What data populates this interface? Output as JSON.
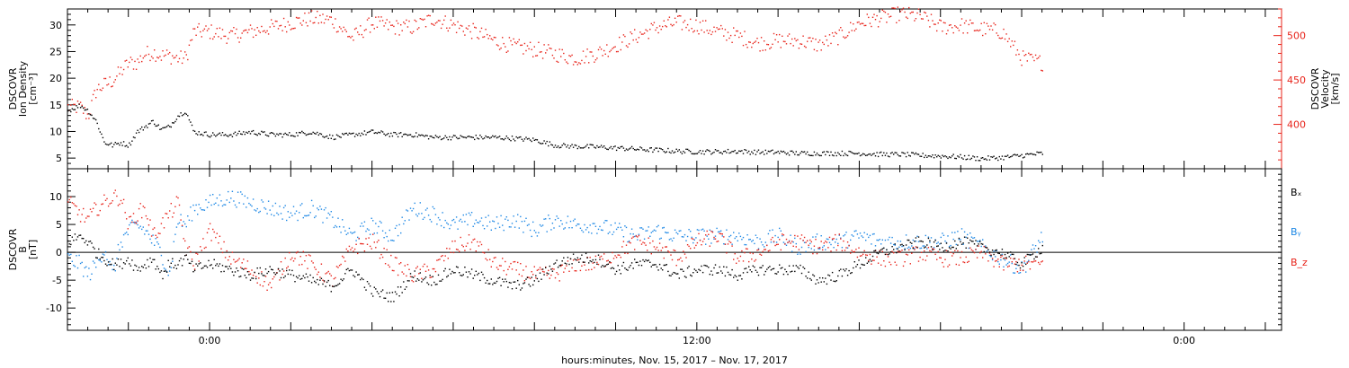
{
  "colors": {
    "black": "#000000",
    "red": "#e8241b",
    "blue": "#1e88e5"
  },
  "chart_data": [
    {
      "type": "scatter",
      "panel": "plasma",
      "x_unit": "hours since 00:00 Nov 16, 2017",
      "xlim": [
        -3.5,
        26.4
      ],
      "x_major_ticks": [
        -2.0,
        0.0,
        2.0,
        4.0,
        6.0,
        8.0,
        10.0,
        12.0,
        14.0,
        16.0,
        18.0,
        20.0,
        22.0,
        24.0,
        26.0
      ],
      "x_tick_labels": [
        {
          "x": 0.0,
          "label": "0:00"
        },
        {
          "x": 12.0,
          "label": "12:00"
        },
        {
          "x": 24.0,
          "label": "0:00"
        }
      ],
      "left_axis": {
        "label_lines": [
          "DSCOVR",
          "Ion Density",
          "[cm⁻³]"
        ],
        "ylim": [
          3,
          33
        ],
        "ticks": [
          5,
          10,
          15,
          20,
          25,
          30
        ],
        "color": "#000000"
      },
      "right_axis": {
        "label_lines": [
          "DSCOVR",
          "Velocity",
          "[km/s]"
        ],
        "ylim": [
          350,
          530
        ],
        "ticks": [
          400,
          450,
          500
        ],
        "color": "#e8241b"
      },
      "series": [
        {
          "axis": "left",
          "color": "#000000",
          "x": [
            -3.5,
            -3.2,
            -3.0,
            -2.8,
            -2.6,
            -2.4,
            -2.2,
            -2.0,
            -1.8,
            -1.6,
            -1.4,
            -1.2,
            -1.0,
            -0.8,
            -0.6,
            -0.4,
            0.0,
            0.5,
            1.0,
            1.5,
            2.0,
            2.5,
            3.0,
            3.5,
            4.0,
            4.5,
            5.0,
            5.5,
            6.0,
            6.5,
            7.0,
            7.5,
            8.0,
            8.5,
            9.0,
            9.5,
            10.0,
            10.5,
            11.0,
            11.5,
            12.0,
            12.5,
            13.0,
            13.5,
            14.0,
            14.5,
            15.0,
            15.5,
            16.0,
            16.5,
            17.0,
            17.5,
            18.0,
            18.5,
            19.0,
            19.5,
            20.0,
            20.5
          ],
          "y": [
            14,
            15,
            14,
            12,
            8,
            7.5,
            8,
            7.5,
            10,
            11,
            12,
            10.5,
            11,
            13,
            14,
            10,
            9.5,
            9.5,
            10,
            9.5,
            9.5,
            10,
            9,
            9.5,
            10,
            9.5,
            9.5,
            9,
            9,
            9,
            9,
            8.8,
            8.5,
            7.5,
            7.3,
            7.2,
            7.0,
            6.8,
            6.6,
            6.4,
            6.3,
            6.3,
            6.4,
            6.2,
            6.2,
            6.0,
            6.0,
            6.0,
            6.0,
            5.8,
            5.8,
            5.6,
            5.5,
            5.3,
            5.0,
            5.2,
            5.6,
            6.0
          ]
        },
        {
          "axis": "right",
          "color": "#e8241b",
          "x": [
            -3.5,
            -3.2,
            -3.0,
            -2.8,
            -2.6,
            -2.4,
            -2.2,
            -2.0,
            -1.8,
            -1.6,
            -1.4,
            -1.2,
            -1.0,
            -0.8,
            -0.6,
            -0.4,
            0.0,
            0.5,
            1.0,
            1.5,
            2.0,
            2.5,
            3.0,
            3.5,
            4.0,
            4.5,
            5.0,
            5.5,
            6.0,
            6.5,
            7.0,
            7.5,
            8.0,
            8.5,
            9.0,
            9.5,
            10.0,
            10.5,
            11.0,
            11.5,
            12.0,
            12.5,
            13.0,
            13.5,
            14.0,
            14.5,
            15.0,
            15.5,
            16.0,
            16.5,
            17.0,
            17.5,
            18.0,
            18.5,
            19.0,
            19.5,
            20.0,
            20.5
          ],
          "y": [
            420,
            420,
            410,
            440,
            445,
            450,
            460,
            470,
            470,
            480,
            482,
            478,
            478,
            475,
            475,
            505,
            505,
            500,
            505,
            510,
            515,
            520,
            518,
            498,
            515,
            510,
            510,
            520,
            512,
            505,
            495,
            488,
            485,
            480,
            475,
            480,
            490,
            500,
            510,
            515,
            512,
            505,
            500,
            492,
            495,
            495,
            490,
            500,
            515,
            520,
            525,
            522,
            510,
            512,
            508,
            505,
            475,
            470
          ]
        }
      ]
    },
    {
      "type": "scatter",
      "panel": "magnetic",
      "x_unit": "hours since 00:00 Nov 16, 2017",
      "xlim": [
        -3.5,
        26.4
      ],
      "left_axis": {
        "label_lines": [
          "DSCOVR",
          "B",
          "[nT]"
        ],
        "ylim": [
          -14,
          15
        ],
        "ticks": [
          -10,
          -5,
          0,
          5,
          10
        ],
        "zero_line": true
      },
      "legend": [
        {
          "name": "Bₓ",
          "color": "#000000"
        },
        {
          "name": "Bᵧ",
          "color": "#1e88e5"
        },
        {
          "name": "B_z",
          "color": "#e8241b"
        }
      ],
      "series": [
        {
          "name": "Bₓ",
          "color": "#000000",
          "x": [
            -3.5,
            -3.2,
            -3.0,
            -2.8,
            -2.6,
            -2.4,
            -2.2,
            -2.0,
            -1.8,
            -1.6,
            -1.4,
            -1.2,
            -1.0,
            -0.8,
            -0.6,
            -0.4,
            0.0,
            0.5,
            1.0,
            1.5,
            2.0,
            2.5,
            3.0,
            3.5,
            4.0,
            4.5,
            5.0,
            5.5,
            6.0,
            6.5,
            7.0,
            7.5,
            8.0,
            8.5,
            9.0,
            9.5,
            10.0,
            10.5,
            11.0,
            11.5,
            12.0,
            12.5,
            13.0,
            13.5,
            14.0,
            14.5,
            15.0,
            15.5,
            16.0,
            16.5,
            17.0,
            17.5,
            18.0,
            18.5,
            19.0,
            19.5,
            20.0,
            20.5
          ],
          "y": [
            2,
            3,
            2,
            0,
            -1,
            -2,
            -2,
            -1,
            -3,
            -2,
            -1,
            -4,
            -2,
            -2,
            -1,
            -3,
            -2,
            -3,
            -4,
            -3,
            -4,
            -5,
            -6,
            -3,
            -7,
            -8,
            -4,
            -5,
            -3,
            -4,
            -5,
            -6,
            -5,
            -2,
            -1,
            -1,
            -3,
            -2,
            -2,
            -4,
            -3,
            -3,
            -4,
            -3,
            -3,
            -3,
            -5,
            -4,
            -2,
            0,
            1,
            2,
            1,
            2,
            1,
            0,
            -2,
            1
          ]
        },
        {
          "name": "Bᵧ",
          "color": "#1e88e5",
          "x": [
            -3.5,
            -3.2,
            -3.0,
            -2.8,
            -2.6,
            -2.4,
            -2.2,
            -2.0,
            -1.8,
            -1.6,
            -1.4,
            -1.2,
            -1.0,
            -0.8,
            -0.6,
            -0.4,
            0.0,
            0.5,
            1.0,
            1.5,
            2.0,
            2.5,
            3.0,
            3.5,
            4.0,
            4.5,
            5.0,
            5.5,
            6.0,
            6.5,
            7.0,
            7.5,
            8.0,
            8.5,
            9.0,
            9.5,
            10.0,
            10.5,
            11.0,
            11.5,
            12.0,
            12.5,
            13.0,
            13.5,
            14.0,
            14.5,
            15.0,
            15.5,
            16.0,
            16.5,
            17.0,
            17.5,
            18.0,
            18.5,
            19.0,
            19.5,
            20.0,
            20.5
          ],
          "y": [
            -1,
            -2,
            -4,
            -2,
            1,
            -4,
            2,
            4,
            5,
            4,
            2,
            0,
            -4,
            6,
            5,
            8,
            9,
            10,
            9,
            8,
            7,
            8,
            6,
            3,
            5,
            3,
            8,
            7,
            5,
            6,
            5,
            6,
            4,
            6,
            5,
            5,
            4,
            3,
            4,
            3,
            3,
            3,
            3,
            2,
            3,
            1,
            2,
            2,
            3,
            2,
            2,
            2,
            2,
            3,
            1,
            -1,
            -3,
            3
          ]
        },
        {
          "name": "B_z",
          "color": "#e8241b",
          "x": [
            -3.5,
            -3.2,
            -3.0,
            -2.8,
            -2.6,
            -2.4,
            -2.2,
            -2.0,
            -1.8,
            -1.6,
            -1.4,
            -1.2,
            -1.0,
            -0.8,
            -0.6,
            -0.4,
            0.0,
            0.5,
            1.0,
            1.5,
            2.0,
            2.5,
            3.0,
            3.5,
            4.0,
            4.5,
            5.0,
            5.5,
            6.0,
            6.5,
            7.0,
            7.5,
            8.0,
            8.5,
            9.0,
            9.5,
            10.0,
            10.5,
            11.0,
            11.5,
            12.0,
            12.5,
            13.0,
            13.5,
            14.0,
            14.5,
            15.0,
            15.5,
            16.0,
            16.5,
            17.0,
            17.5,
            18.0,
            18.5,
            19.0,
            19.5,
            20.0,
            20.5
          ],
          "y": [
            9,
            7,
            6,
            8,
            9,
            10,
            10,
            5,
            7,
            8,
            3,
            5,
            7,
            9,
            1,
            -2,
            4,
            -1,
            -3,
            -6,
            0,
            -2,
            -5,
            1,
            2,
            -2,
            -4,
            -3,
            1,
            2,
            -2,
            -3,
            -4,
            -4,
            -2,
            -2,
            0,
            2,
            1,
            -1,
            2,
            3,
            -1,
            0,
            2,
            2,
            1,
            2,
            0,
            -1,
            -1,
            0,
            -1,
            -1,
            0,
            -2,
            -2,
            -2
          ]
        }
      ]
    }
  ],
  "figure": {
    "x_axis_title": "hours:minutes, Nov. 15, 2017 – Nov. 17, 2017"
  }
}
